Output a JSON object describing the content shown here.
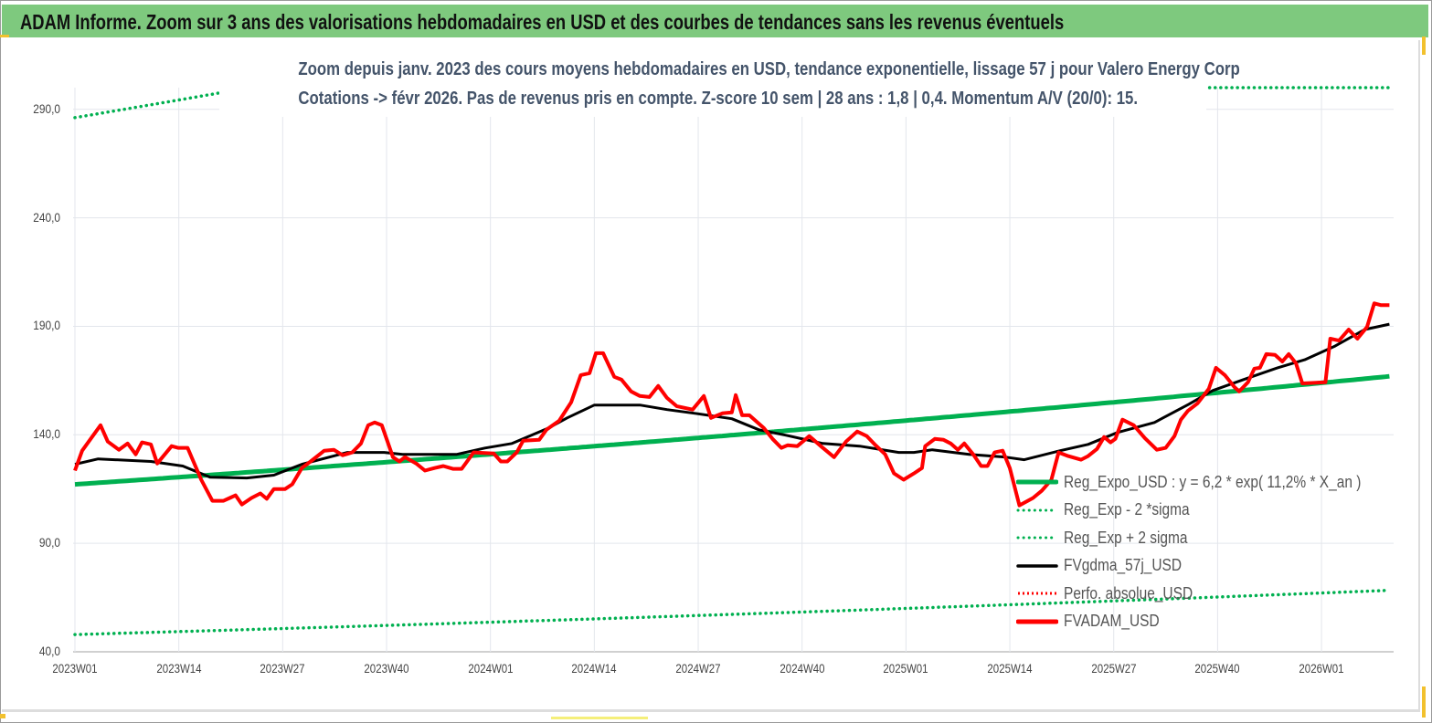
{
  "header": {
    "title": "ADAM Informe. Zoom sur 3 ans des valorisations hebdomadaires en USD et des courbes de tendances sans les revenus éventuels"
  },
  "chart_data": {
    "type": "line",
    "title": "Zoom depuis janv. 2023 des cours moyens hebdomadaires en USD, tendance exponentielle, lissage 57 j pour Valero Energy Corp",
    "subtitle": "Cotations -> févr 2026.  Pas de revenus pris en compte. Z-score 10 sem  | 28 ans : 1,8  | 0,4. Momentum A/V (20/0): 15.",
    "x_unit": "weeks since 2023W01",
    "x_range": [
      0,
      164.5
    ],
    "ylim": [
      40,
      300
    ],
    "y_ticks": [
      "40,0",
      "90,0",
      "140,0",
      "190,0",
      "240,0",
      "290,0"
    ],
    "y_tick_values": [
      40,
      90,
      140,
      190,
      240,
      290
    ],
    "x_ticks": [
      "2023W01",
      "2023W14",
      "2023W27",
      "2023W40",
      "2024W01",
      "2024W14",
      "2024W27",
      "2024W40",
      "2025W01",
      "2025W14",
      "2025W27",
      "2025W40",
      "2026W01"
    ],
    "x_tick_values": [
      0,
      13,
      26,
      39,
      52,
      65,
      78,
      91,
      104,
      117,
      130,
      143,
      156
    ],
    "grid": true,
    "legend_position": "bottom-right",
    "regression": {
      "a": 6.2,
      "rate": 0.112,
      "x_an_start": 26.24,
      "sigma2_factor": 2.443
    },
    "colors": {
      "regression": "#00b050",
      "sigma": "#00b050",
      "moving_avg": "#000000",
      "perfo": "#ff0000",
      "price": "#ff0000"
    },
    "legend": [
      {
        "label": "Reg_Expo_USD : y = 6,2  * exp( 11,2% *  X_an )",
        "style": "solid-thick",
        "color": "#00b050"
      },
      {
        "label": "Reg_Exp - 2 *sigma",
        "style": "dotted",
        "color": "#00b050"
      },
      {
        "label": "Reg_Exp + 2 sigma",
        "style": "dotted",
        "color": "#00b050"
      },
      {
        "label": "FVgdma_57j_USD",
        "style": "solid",
        "color": "#000000"
      },
      {
        "label": "Perfo. absolue_USD",
        "style": "dotted",
        "color": "#ff0000"
      },
      {
        "label": "FVADAM_USD",
        "style": "solid-thick",
        "color": "#ff0000"
      }
    ],
    "series": [
      {
        "name": "FVgdma_57j_USD",
        "points": [
          [
            0,
            126.4
          ],
          [
            2.9,
            128.9
          ],
          [
            9.5,
            127.7
          ],
          [
            13.5,
            125.6
          ],
          [
            16.9,
            120.5
          ],
          [
            21.5,
            120.1
          ],
          [
            24.9,
            121.4
          ],
          [
            28.4,
            126.4
          ],
          [
            34.1,
            131.9
          ],
          [
            38.7,
            131.9
          ],
          [
            41,
            131
          ],
          [
            47.8,
            131
          ],
          [
            51.3,
            133.9
          ],
          [
            54.7,
            136
          ],
          [
            59.3,
            143.2
          ],
          [
            61.6,
            147.8
          ],
          [
            65,
            153.7
          ],
          [
            70.7,
            153.7
          ],
          [
            74.1,
            151.6
          ],
          [
            77.6,
            149.9
          ],
          [
            82.2,
            147.4
          ],
          [
            85.6,
            142.3
          ],
          [
            89,
            139.8
          ],
          [
            93.6,
            136
          ],
          [
            98.2,
            134.8
          ],
          [
            103.1,
            131.9
          ],
          [
            105,
            131.9
          ],
          [
            107.3,
            133.1
          ],
          [
            111.9,
            131
          ],
          [
            116.5,
            129.7
          ],
          [
            118.8,
            128.5
          ],
          [
            123.3,
            132.7
          ],
          [
            126.8,
            135.6
          ],
          [
            130.5,
            141.1
          ],
          [
            135.1,
            145.7
          ],
          [
            139.4,
            154.1
          ],
          [
            142.4,
            160.4
          ],
          [
            146.2,
            165.4
          ],
          [
            150.5,
            170.9
          ],
          [
            153.9,
            174.6
          ],
          [
            157.7,
            180.9
          ],
          [
            161.4,
            188.5
          ],
          [
            164.5,
            191
          ]
        ]
      },
      {
        "name": "FVADAM_USD",
        "points": [
          [
            0,
            123.5
          ],
          [
            0.9,
            132.7
          ],
          [
            3.2,
            144.4
          ],
          [
            4.1,
            136.9
          ],
          [
            5.5,
            133.1
          ],
          [
            6.6,
            136
          ],
          [
            7.6,
            131
          ],
          [
            8.4,
            136.5
          ],
          [
            9.5,
            135.6
          ],
          [
            10.3,
            126.8
          ],
          [
            12.1,
            134.8
          ],
          [
            12.9,
            134
          ],
          [
            14.1,
            134
          ],
          [
            15.8,
            119.3
          ],
          [
            17.2,
            109.6
          ],
          [
            18.6,
            109.6
          ],
          [
            20.1,
            112.1
          ],
          [
            20.9,
            107.9
          ],
          [
            22.1,
            110.9
          ],
          [
            23.2,
            113
          ],
          [
            24,
            110.5
          ],
          [
            24.9,
            115
          ],
          [
            26.3,
            115
          ],
          [
            27.2,
            117.2
          ],
          [
            28.4,
            124.7
          ],
          [
            29.5,
            127.7
          ],
          [
            31.2,
            132.7
          ],
          [
            32.4,
            133.1
          ],
          [
            33.5,
            130.6
          ],
          [
            34.7,
            131.9
          ],
          [
            35.8,
            136
          ],
          [
            36.7,
            144.4
          ],
          [
            37.5,
            145.7
          ],
          [
            38.4,
            144.4
          ],
          [
            39.8,
            129.7
          ],
          [
            40.6,
            127.7
          ],
          [
            41.3,
            129.7
          ],
          [
            42.7,
            126.8
          ],
          [
            43.8,
            123.5
          ],
          [
            45,
            124.7
          ],
          [
            46.1,
            125.6
          ],
          [
            47.3,
            124.3
          ],
          [
            48.4,
            124.3
          ],
          [
            49.9,
            131.9
          ],
          [
            52.4,
            131.4
          ],
          [
            53.3,
            127.7
          ],
          [
            54.1,
            127.7
          ],
          [
            55.3,
            131.9
          ],
          [
            56.1,
            137.3
          ],
          [
            58.1,
            137.7
          ],
          [
            59,
            142.3
          ],
          [
            60.6,
            146.5
          ],
          [
            62.1,
            155
          ],
          [
            63.3,
            167.5
          ],
          [
            64.4,
            168.4
          ],
          [
            65.2,
            177.6
          ],
          [
            66.1,
            177.6
          ],
          [
            67.5,
            166.7
          ],
          [
            68.4,
            165.4
          ],
          [
            69.6,
            160
          ],
          [
            70.7,
            157.9
          ],
          [
            71.9,
            157.4
          ],
          [
            73,
            162.5
          ],
          [
            74.1,
            157
          ],
          [
            75.3,
            153.2
          ],
          [
            77.3,
            151.6
          ],
          [
            78.7,
            157.9
          ],
          [
            79.6,
            147.8
          ],
          [
            81,
            149.9
          ],
          [
            82.2,
            150.3
          ],
          [
            82.7,
            158.3
          ],
          [
            83.5,
            149
          ],
          [
            84.4,
            149
          ],
          [
            86.2,
            143.2
          ],
          [
            87.3,
            138.1
          ],
          [
            88.4,
            134
          ],
          [
            89.2,
            135.2
          ],
          [
            90.4,
            134.8
          ],
          [
            91.9,
            139.4
          ],
          [
            93.6,
            134
          ],
          [
            95,
            129.7
          ],
          [
            96.5,
            136.9
          ],
          [
            97.9,
            141.5
          ],
          [
            99.1,
            139.4
          ],
          [
            100.2,
            135.2
          ],
          [
            101.4,
            131
          ],
          [
            102.5,
            122.2
          ],
          [
            103.7,
            119.3
          ],
          [
            105,
            122.2
          ],
          [
            106,
            124.7
          ],
          [
            106.4,
            134.8
          ],
          [
            107.6,
            138.1
          ],
          [
            108.7,
            137.7
          ],
          [
            109.6,
            136
          ],
          [
            110.5,
            133.1
          ],
          [
            111.3,
            136
          ],
          [
            112.5,
            130.6
          ],
          [
            113.4,
            125.6
          ],
          [
            114.2,
            125.6
          ],
          [
            115.1,
            131.9
          ],
          [
            116.1,
            132.7
          ],
          [
            117,
            124.7
          ],
          [
            118.2,
            107.5
          ],
          [
            119.9,
            110.9
          ],
          [
            121,
            114.2
          ],
          [
            122.2,
            119.3
          ],
          [
            123.1,
            131.9
          ],
          [
            124.3,
            130.2
          ],
          [
            125.9,
            128.5
          ],
          [
            126.8,
            130.2
          ],
          [
            127.9,
            133.5
          ],
          [
            128.8,
            139
          ],
          [
            129.6,
            136.5
          ],
          [
            130.2,
            138.1
          ],
          [
            131.1,
            147
          ],
          [
            132.5,
            144.4
          ],
          [
            133.9,
            138.5
          ],
          [
            135.4,
            133.1
          ],
          [
            136.5,
            134
          ],
          [
            137.6,
            139.4
          ],
          [
            138.4,
            147
          ],
          [
            139.3,
            151.1
          ],
          [
            140.5,
            154.5
          ],
          [
            141.9,
            161.2
          ],
          [
            142.8,
            170.9
          ],
          [
            143.9,
            167.5
          ],
          [
            145.1,
            162
          ],
          [
            145.7,
            160
          ],
          [
            146.8,
            164.2
          ],
          [
            147.6,
            170.5
          ],
          [
            148.3,
            170.9
          ],
          [
            149.1,
            177.2
          ],
          [
            150.2,
            176.8
          ],
          [
            151.1,
            173.8
          ],
          [
            151.9,
            177.2
          ],
          [
            152.8,
            173
          ],
          [
            153.6,
            163.7
          ],
          [
            156.5,
            164.2
          ],
          [
            157.1,
            184.3
          ],
          [
            158.2,
            183.4
          ],
          [
            159.4,
            188.5
          ],
          [
            160.5,
            184.3
          ],
          [
            161.7,
            189.7
          ],
          [
            162.6,
            200.6
          ],
          [
            163.4,
            199.8
          ],
          [
            164.5,
            199.8
          ]
        ]
      }
    ]
  }
}
